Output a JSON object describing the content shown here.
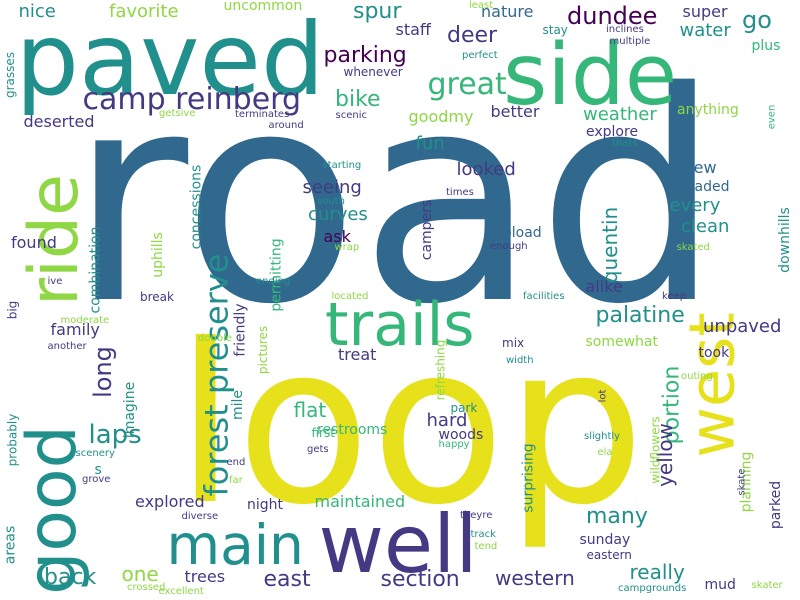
{
  "palette": {
    "yellow": "#e6e11a",
    "lime": "#8fd744",
    "green": "#35b779",
    "teal": "#21908d",
    "blue": "#31688e",
    "indigo": "#443a83",
    "purple": "#440154"
  },
  "words": [
    {
      "text": "road",
      "color": "blue",
      "vertical": false
    },
    {
      "text": "loop",
      "color": "yellow",
      "vertical": false
    },
    {
      "text": "paved",
      "color": "teal",
      "vertical": false
    },
    {
      "text": "side",
      "color": "green",
      "vertical": false
    },
    {
      "text": "well",
      "color": "indigo",
      "vertical": false
    },
    {
      "text": "good",
      "color": "teal",
      "vertical": true
    },
    {
      "text": "ride",
      "color": "lime",
      "vertical": true
    },
    {
      "text": "trails",
      "color": "green",
      "vertical": false
    },
    {
      "text": "main",
      "color": "teal",
      "vertical": false
    },
    {
      "text": "west",
      "color": "yellow",
      "vertical": true
    },
    {
      "text": "camp reinberg",
      "color": "indigo",
      "vertical": false
    },
    {
      "text": "forest preserve",
      "color": "teal",
      "vertical": true
    },
    {
      "text": "great",
      "color": "green",
      "vertical": false
    },
    {
      "text": "parking",
      "color": "purple",
      "vertical": false
    },
    {
      "text": "dundee",
      "color": "purple",
      "vertical": false
    },
    {
      "text": "spur",
      "color": "teal",
      "vertical": false
    },
    {
      "text": "deer",
      "color": "indigo",
      "vertical": false
    },
    {
      "text": "bike",
      "color": "green",
      "vertical": false
    },
    {
      "text": "weather",
      "color": "green",
      "vertical": false
    },
    {
      "text": "palatine",
      "color": "teal",
      "vertical": false
    },
    {
      "text": "laps",
      "color": "teal",
      "vertical": false
    },
    {
      "text": "long",
      "color": "indigo",
      "vertical": true
    },
    {
      "text": "section",
      "color": "indigo",
      "vertical": false
    },
    {
      "text": "east",
      "color": "indigo",
      "vertical": false
    },
    {
      "text": "western",
      "color": "indigo",
      "vertical": false
    },
    {
      "text": "really",
      "color": "teal",
      "vertical": false
    },
    {
      "text": "many",
      "color": "teal",
      "vertical": false
    },
    {
      "text": "back",
      "color": "teal",
      "vertical": false
    },
    {
      "text": "one",
      "color": "lime",
      "vertical": false
    },
    {
      "text": "trees",
      "color": "indigo",
      "vertical": false
    },
    {
      "text": "flat",
      "color": "green",
      "vertical": false
    },
    {
      "text": "hard",
      "color": "indigo",
      "vertical": false
    },
    {
      "text": "portion",
      "color": "green",
      "vertical": true
    },
    {
      "text": "yellow",
      "color": "indigo",
      "vertical": true
    },
    {
      "text": "unpaved",
      "color": "indigo",
      "vertical": false
    },
    {
      "text": "quentin",
      "color": "teal",
      "vertical": true
    },
    {
      "text": "go",
      "color": "teal",
      "vertical": false
    },
    {
      "text": "water",
      "color": "teal",
      "vertical": false
    },
    {
      "text": "super",
      "color": "indigo",
      "vertical": false
    },
    {
      "text": "nature",
      "color": "blue",
      "vertical": false
    },
    {
      "text": "staff",
      "color": "indigo",
      "vertical": false
    },
    {
      "text": "plus",
      "color": "green",
      "vertical": false
    },
    {
      "text": "fun",
      "color": "teal",
      "vertical": false
    },
    {
      "text": "looked",
      "color": "indigo",
      "vertical": false
    },
    {
      "text": "seeing",
      "color": "indigo",
      "vertical": false
    },
    {
      "text": "curves",
      "color": "teal",
      "vertical": false
    },
    {
      "text": "ask",
      "color": "purple",
      "vertical": false
    },
    {
      "text": "upload",
      "color": "blue",
      "vertical": false
    },
    {
      "text": "every",
      "color": "teal",
      "vertical": false
    },
    {
      "text": "clean",
      "color": "teal",
      "vertical": false
    },
    {
      "text": "new",
      "color": "blue",
      "vertical": false
    },
    {
      "text": "headed",
      "color": "blue",
      "vertical": false
    },
    {
      "text": "better",
      "color": "indigo",
      "vertical": false
    },
    {
      "text": "goodmy",
      "color": "lime",
      "vertical": false
    },
    {
      "text": "explore",
      "color": "indigo",
      "vertical": false
    },
    {
      "text": "anything",
      "color": "lime",
      "vertical": false
    },
    {
      "text": "deserted",
      "color": "indigo",
      "vertical": false
    },
    {
      "text": "nice",
      "color": "teal",
      "vertical": false
    },
    {
      "text": "favorite",
      "color": "lime",
      "vertical": false
    },
    {
      "text": "uncommon",
      "color": "lime",
      "vertical": false
    },
    {
      "text": "found",
      "color": "indigo",
      "vertical": false
    },
    {
      "text": "family",
      "color": "indigo",
      "vertical": false
    },
    {
      "text": "combination",
      "color": "teal",
      "vertical": true
    },
    {
      "text": "uphills",
      "color": "lime",
      "vertical": true
    },
    {
      "text": "concessions",
      "color": "teal",
      "vertical": true
    },
    {
      "text": "permitting",
      "color": "green",
      "vertical": true
    },
    {
      "text": "campers",
      "color": "indigo",
      "vertical": true
    },
    {
      "text": "friendly",
      "color": "indigo",
      "vertical": true
    },
    {
      "text": "mile",
      "color": "teal",
      "vertical": true
    },
    {
      "text": "imagine",
      "color": "teal",
      "vertical": true
    },
    {
      "text": "treat",
      "color": "indigo",
      "vertical": false
    },
    {
      "text": "restrooms",
      "color": "green",
      "vertical": false
    },
    {
      "text": "somewhat",
      "color": "lime",
      "vertical": false
    },
    {
      "text": "alike",
      "color": "indigo",
      "vertical": false
    },
    {
      "text": "took",
      "color": "indigo",
      "vertical": false
    },
    {
      "text": "mix",
      "color": "indigo",
      "vertical": false
    },
    {
      "text": "break",
      "color": "indigo",
      "vertical": false
    },
    {
      "text": "explored",
      "color": "indigo",
      "vertical": false
    },
    {
      "text": "night",
      "color": "indigo",
      "vertical": false
    },
    {
      "text": "maintained",
      "color": "green",
      "vertical": false
    },
    {
      "text": "sunday",
      "color": "indigo",
      "vertical": false
    },
    {
      "text": "eastern",
      "color": "indigo",
      "vertical": false
    },
    {
      "text": "mud",
      "color": "indigo",
      "vertical": false
    },
    {
      "text": "surprising",
      "color": "teal",
      "vertical": true
    },
    {
      "text": "refreshing",
      "color": "lime",
      "vertical": true
    },
    {
      "text": "downhills",
      "color": "teal",
      "vertical": true
    },
    {
      "text": "planning",
      "color": "lime",
      "vertical": true
    },
    {
      "text": "parked",
      "color": "indigo",
      "vertical": true
    },
    {
      "text": "wildflowers",
      "color": "lime",
      "vertical": true
    },
    {
      "text": "park",
      "color": "teal",
      "vertical": false
    },
    {
      "text": "woods",
      "color": "indigo",
      "vertical": false
    },
    {
      "text": "first",
      "color": "green",
      "vertical": false
    },
    {
      "text": "s",
      "color": "teal",
      "vertical": false
    },
    {
      "text": "areas",
      "color": "teal",
      "vertical": true
    },
    {
      "text": "probably",
      "color": "teal",
      "vertical": true
    },
    {
      "text": "grasses",
      "color": "teal",
      "vertical": true
    },
    {
      "text": "pictures",
      "color": "lime",
      "vertical": true
    },
    {
      "text": "big",
      "color": "indigo",
      "vertical": true
    },
    {
      "text": "scenic",
      "color": "indigo",
      "vertical": false
    },
    {
      "text": "whenever",
      "color": "indigo",
      "vertical": false
    },
    {
      "text": "terminates",
      "color": "indigo",
      "vertical": false
    },
    {
      "text": "around",
      "color": "indigo",
      "vertical": false
    },
    {
      "text": "getsive",
      "color": "lime",
      "vertical": false
    },
    {
      "text": "stay",
      "color": "teal",
      "vertical": false
    },
    {
      "text": "least",
      "color": "lime",
      "vertical": false
    },
    {
      "text": "perfect",
      "color": "teal",
      "vertical": false
    },
    {
      "text": "inclines",
      "color": "indigo",
      "vertical": false
    },
    {
      "text": "multiple",
      "color": "indigo",
      "vertical": false
    },
    {
      "text": "thats",
      "color": "teal",
      "vertical": false
    },
    {
      "text": "even",
      "color": "green",
      "vertical": true
    },
    {
      "text": "starting",
      "color": "teal",
      "vertical": false
    },
    {
      "text": "south",
      "color": "teal",
      "vertical": false
    },
    {
      "text": "wrap",
      "color": "lime",
      "vertical": false
    },
    {
      "text": "times",
      "color": "indigo",
      "vertical": false
    },
    {
      "text": "enough",
      "color": "indigo",
      "vertical": false
    },
    {
      "text": "skated",
      "color": "lime",
      "vertical": false
    },
    {
      "text": "ive",
      "color": "indigo",
      "vertical": false
    },
    {
      "text": "ending",
      "color": "teal",
      "vertical": false
    },
    {
      "text": "located",
      "color": "lime",
      "vertical": false
    },
    {
      "text": "facilities",
      "color": "teal",
      "vertical": false
    },
    {
      "text": "keep",
      "color": "indigo",
      "vertical": false
    },
    {
      "text": "moderate",
      "color": "lime",
      "vertical": false
    },
    {
      "text": "another",
      "color": "indigo",
      "vertical": false
    },
    {
      "text": "double",
      "color": "lime",
      "vertical": false
    },
    {
      "text": "width",
      "color": "teal",
      "vertical": false
    },
    {
      "text": "outing",
      "color": "lime",
      "vertical": false
    },
    {
      "text": "lot",
      "color": "indigo",
      "vertical": true
    },
    {
      "text": "slightly",
      "color": "teal",
      "vertical": false
    },
    {
      "text": "happy",
      "color": "green",
      "vertical": false
    },
    {
      "text": "gets",
      "color": "indigo",
      "vertical": false
    },
    {
      "text": "ela",
      "color": "lime",
      "vertical": false
    },
    {
      "text": "scenery",
      "color": "teal",
      "vertical": false
    },
    {
      "text": "end",
      "color": "indigo",
      "vertical": false
    },
    {
      "text": "grove",
      "color": "indigo",
      "vertical": false
    },
    {
      "text": "far",
      "color": "lime",
      "vertical": false
    },
    {
      "text": "diverse",
      "color": "indigo",
      "vertical": false
    },
    {
      "text": "theyre",
      "color": "indigo",
      "vertical": false
    },
    {
      "text": "track",
      "color": "teal",
      "vertical": false
    },
    {
      "text": "tend",
      "color": "lime",
      "vertical": false
    },
    {
      "text": "skate",
      "color": "indigo",
      "vertical": true
    },
    {
      "text": "crossed",
      "color": "lime",
      "vertical": false
    },
    {
      "text": "excellent",
      "color": "lime",
      "vertical": false
    },
    {
      "text": "campgrounds",
      "color": "teal",
      "vertical": false
    },
    {
      "text": "skater",
      "color": "lime",
      "vertical": false
    }
  ]
}
